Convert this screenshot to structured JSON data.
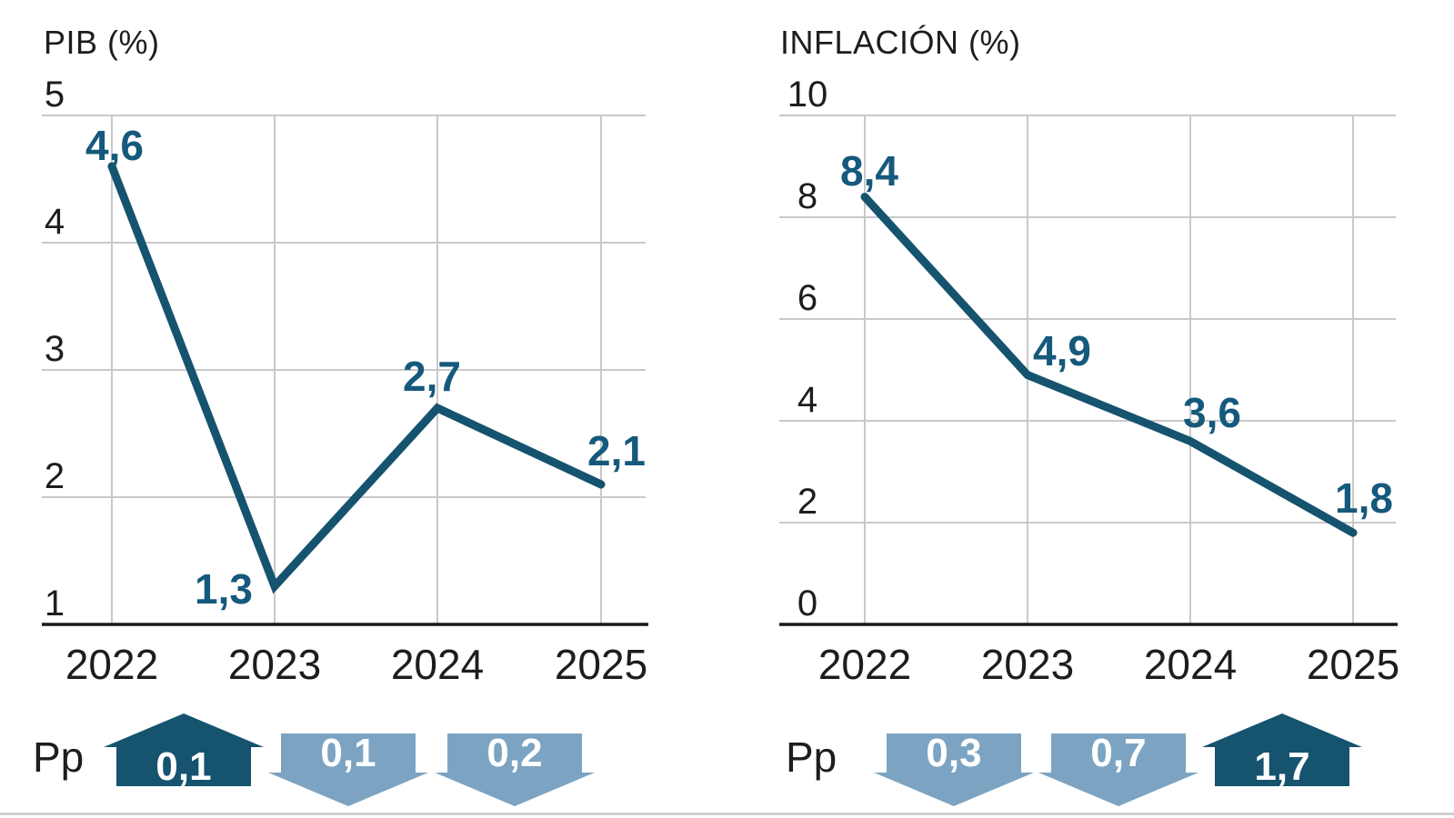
{
  "colors": {
    "accent_dark": "#15536F",
    "accent_light": "#7CA4C2",
    "point_label": "#15597C",
    "grid": "#C9C9C9",
    "axis": "#1A1A1A",
    "text": "#1D1D1B",
    "arrow_text": "#FFFFFF"
  },
  "chart_data": [
    {
      "type": "line",
      "title": "PIB (%)",
      "x": [
        "2022",
        "2023",
        "2024",
        "2025"
      ],
      "values": [
        4.6,
        1.3,
        2.7,
        2.1
      ],
      "point_labels": [
        "4,6",
        "1,3",
        "2,7",
        "2,1"
      ],
      "y_ticks": [
        "5",
        "4",
        "3",
        "2",
        "1"
      ],
      "y_tick_values": [
        5,
        4,
        3,
        2,
        1
      ],
      "ylim": [
        1,
        5
      ],
      "xlabel": "",
      "ylabel": "",
      "grid": true,
      "legend": "none",
      "decimal_separator": ","
    },
    {
      "type": "line",
      "title": "INFLACIÓN (%)",
      "x": [
        "2022",
        "2023",
        "2024",
        "2025"
      ],
      "values": [
        8.4,
        4.9,
        3.6,
        1.8
      ],
      "point_labels": [
        "8,4",
        "4,9",
        "3,6",
        "1,8"
      ],
      "y_ticks": [
        "10",
        "8",
        "6",
        "4",
        "2",
        "0"
      ],
      "y_tick_values": [
        10,
        8,
        6,
        4,
        2,
        0
      ],
      "ylim": [
        0,
        10
      ],
      "xlabel": "",
      "ylabel": "",
      "grid": true,
      "legend": "none",
      "decimal_separator": ","
    }
  ],
  "pp_rows": [
    {
      "label": "Pp",
      "items": [
        {
          "value": "0,1",
          "direction": "up"
        },
        {
          "value": "0,1",
          "direction": "down"
        },
        {
          "value": "0,2",
          "direction": "down"
        }
      ]
    },
    {
      "label": "Pp",
      "items": [
        {
          "value": "0,3",
          "direction": "down"
        },
        {
          "value": "0,7",
          "direction": "down"
        },
        {
          "value": "1,7",
          "direction": "up"
        }
      ]
    }
  ]
}
